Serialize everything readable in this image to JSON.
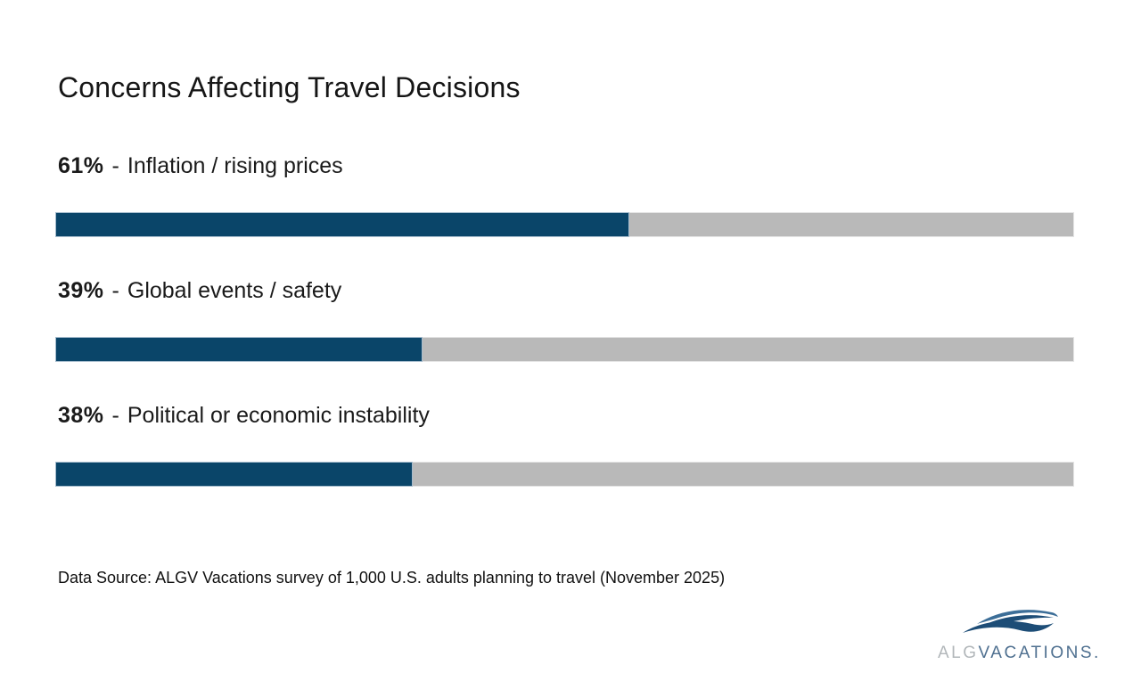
{
  "page": {
    "background": "#ffffff",
    "footer_note": "Data Source: ALGV Vacations survey of 1,000 U.S. adults planning to travel (November 2025)"
  },
  "colors": {
    "page_bg": "#ffffff",
    "title_text": "#161616",
    "label_text": "#1a1a1a",
    "footer_text": "#111111",
    "bar_fill": "#0a4569",
    "bar_track": "#b9b9b9",
    "bar_border": "#a6bccd",
    "track_border": "#e3e3e3",
    "logo_alg": "#b2b7ba",
    "logo_vacations": "#4f7090",
    "logo_wave_dark": "#1d4d77",
    "logo_wave_mid": "#3c6e98"
  },
  "logo": {
    "alg": "ALG",
    "vacations": "VACATIONS.",
    "icon": "waves-icon"
  },
  "chart_data": {
    "type": "bar",
    "orientation": "horizontal",
    "title": "Concerns Affecting Travel Decisions",
    "categories": [
      "Inflation / rising prices",
      "Global events / safety",
      "Political or economic instability"
    ],
    "values": [
      61,
      39,
      38
    ],
    "value_labels": [
      "61%",
      "39%",
      "38%"
    ],
    "separator": "-",
    "unit": "%",
    "xlim": [
      0,
      108
    ],
    "grid": false,
    "legend": false,
    "source_note": "Data Source: ALGV Vacations survey of 1,000 U.S. adults planning to travel (November 2025)"
  }
}
